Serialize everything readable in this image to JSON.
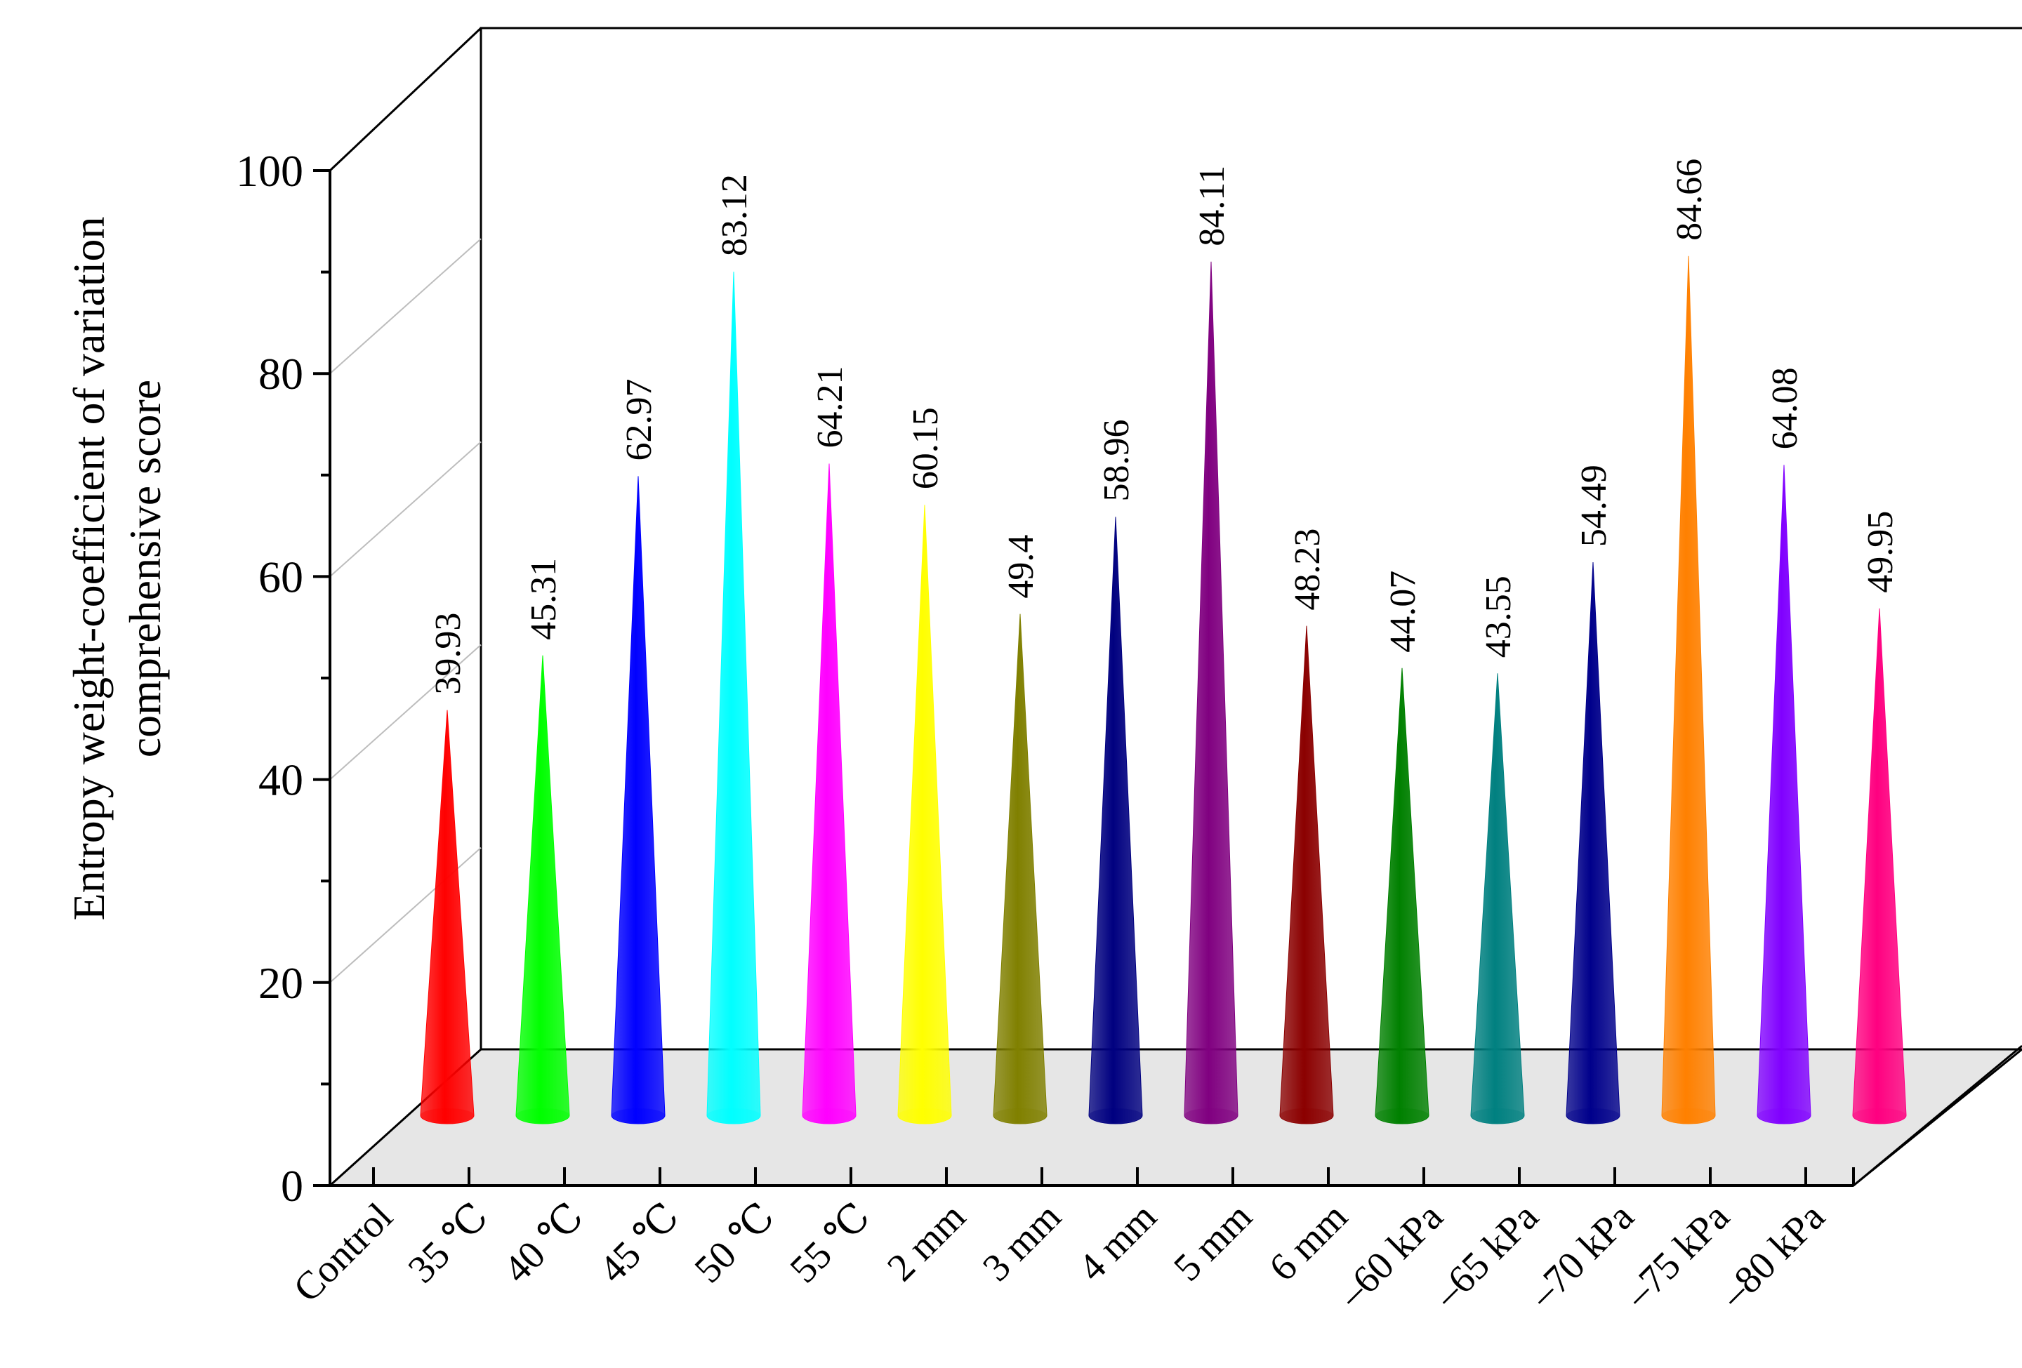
{
  "chart_data": {
    "type": "bar",
    "style": "3d-cone",
    "title": "",
    "xlabel": "",
    "ylabel_lines": [
      "Entropy weight-coefficient of variation",
      "comprehensive score"
    ],
    "ylim": [
      0,
      100
    ],
    "yticks": [
      0,
      20,
      40,
      60,
      80,
      100
    ],
    "grid": true,
    "categories": [
      "Control",
      "35 ℃",
      "40 ℃",
      "45 ℃",
      "50 ℃",
      "55 ℃",
      "2 mm",
      "3 mm",
      "4 mm",
      "5 mm",
      "6 mm",
      "–60 kPa",
      "–65 kPa",
      "–70 kPa",
      "–75 kPa",
      "–80 kPa"
    ],
    "values": [
      39.93,
      45.31,
      62.97,
      83.12,
      64.21,
      60.15,
      49.4,
      58.96,
      84.11,
      48.23,
      44.07,
      43.55,
      54.49,
      84.66,
      64.08,
      49.95
    ],
    "labels": [
      "39.93",
      "45.31",
      "62.97",
      "83.12",
      "64.21",
      "60.15",
      "49.4",
      "58.96",
      "84.11",
      "48.23",
      "44.07",
      "43.55",
      "54.49",
      "84.66",
      "64.08",
      "49.95"
    ],
    "colors": [
      "#ff0000",
      "#00ff00",
      "#0000ff",
      "#00ffff",
      "#ff00ff",
      "#ffff00",
      "#808000",
      "#000080",
      "#800080",
      "#8b0000",
      "#008000",
      "#008080",
      "#00008b",
      "#ff8000",
      "#8000ff",
      "#ff0080"
    ]
  }
}
